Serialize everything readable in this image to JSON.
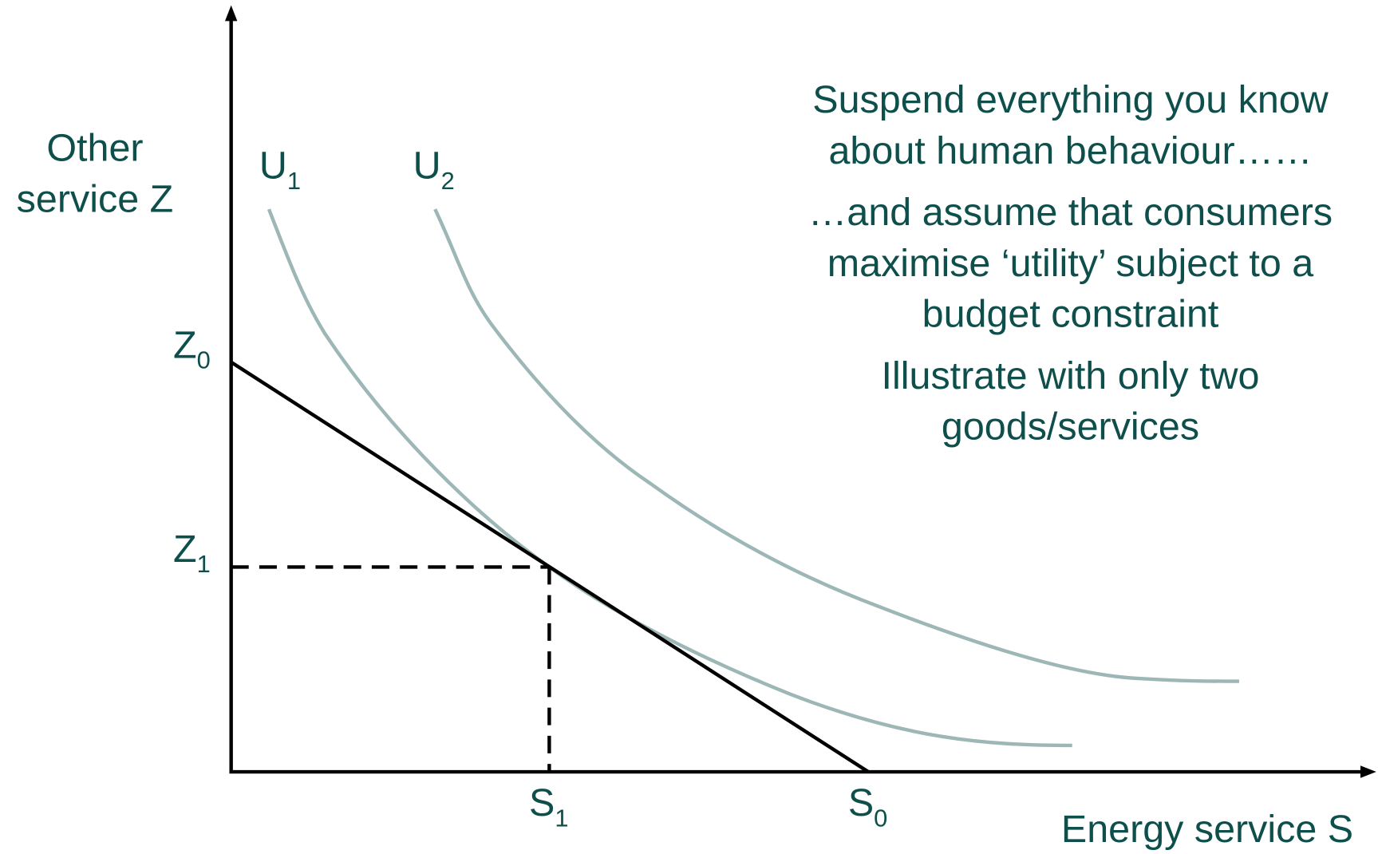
{
  "axes": {
    "y_label": [
      "Other",
      "service Z"
    ],
    "x_label": "Energy service S"
  },
  "curves": [
    {
      "main": "U",
      "sub": "1"
    },
    {
      "main": "U",
      "sub": "2"
    }
  ],
  "points": {
    "z0": {
      "main": "Z",
      "sub": "0"
    },
    "z1": {
      "main": "Z",
      "sub": "1"
    },
    "s1": {
      "main": "S",
      "sub": "1"
    },
    "s0": {
      "main": "S",
      "sub": "0"
    }
  },
  "notes": [
    [
      "Suspend everything you know",
      "about human behaviour……"
    ],
    [
      "…and assume that consumers",
      "maximise ‘utility’ subject to a",
      "budget constraint"
    ],
    [
      "Illustrate with only two",
      "goods/services"
    ]
  ]
}
